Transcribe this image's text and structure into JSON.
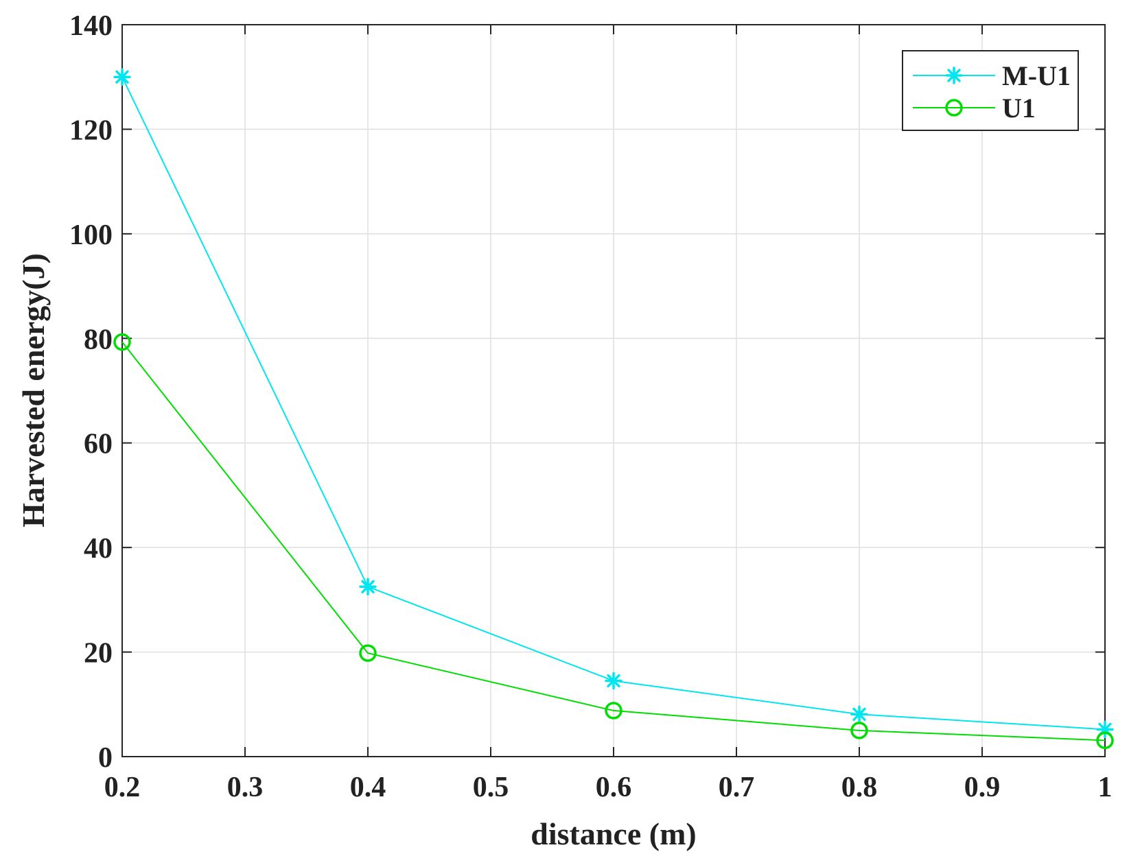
{
  "chart_data": {
    "type": "line",
    "title": "",
    "xlabel": "distance (m)",
    "ylabel": "Harvested energy(J)",
    "xlim": [
      0.2,
      1.0
    ],
    "ylim": [
      0,
      140
    ],
    "xticks": [
      0.2,
      0.3,
      0.4,
      0.5,
      0.6,
      0.7,
      0.8,
      0.9,
      1.0
    ],
    "xtick_labels": [
      "0.2",
      "0.3",
      "0.4",
      "0.5",
      "0.6",
      "0.7",
      "0.8",
      "0.9",
      "1"
    ],
    "yticks": [
      0,
      20,
      40,
      60,
      80,
      100,
      120,
      140
    ],
    "ytick_labels": [
      "0",
      "20",
      "40",
      "60",
      "80",
      "100",
      "120",
      "140"
    ],
    "grid": true,
    "legend_position": "top-right",
    "series": [
      {
        "name": "M-U1",
        "color": "#00e5ee",
        "marker": "asterisk",
        "x": [
          0.2,
          0.4,
          0.6,
          0.8,
          1.0
        ],
        "y": [
          130,
          32.5,
          14.5,
          8.1,
          5.2
        ]
      },
      {
        "name": "U1",
        "color": "#00dd00",
        "marker": "circle",
        "x": [
          0.2,
          0.4,
          0.6,
          0.8,
          1.0
        ],
        "y": [
          79.3,
          19.8,
          8.8,
          5.0,
          3.1
        ]
      }
    ]
  }
}
